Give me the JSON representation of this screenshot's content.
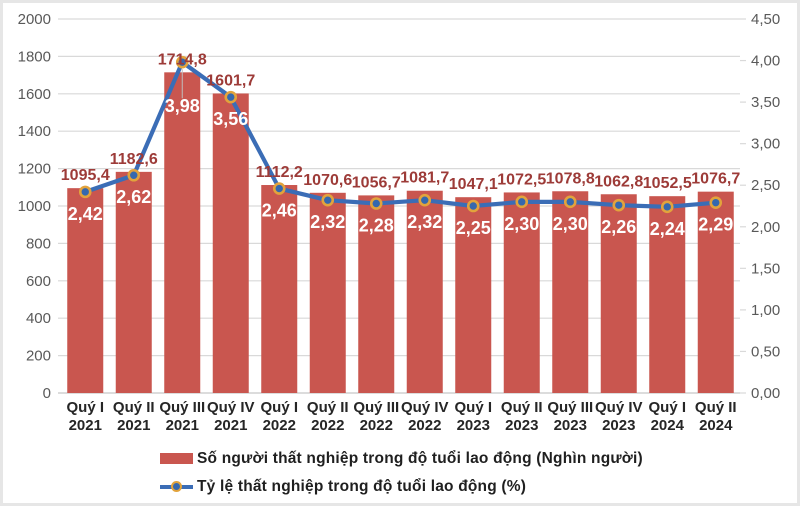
{
  "chart_data": {
    "type": "bar+line combo",
    "categories": [
      [
        "Quý I",
        "2021"
      ],
      [
        "Quý II",
        "2021"
      ],
      [
        "Quý III",
        "2021"
      ],
      [
        "Quý IV",
        "2021"
      ],
      [
        "Quý I",
        "2022"
      ],
      [
        "Quý II",
        "2022"
      ],
      [
        "Quý III",
        "2022"
      ],
      [
        "Quý IV",
        "2022"
      ],
      [
        "Quý I",
        "2023"
      ],
      [
        "Quý II",
        "2023"
      ],
      [
        "Quý III",
        "2023"
      ],
      [
        "Quý IV",
        "2023"
      ],
      [
        "Quý I",
        "2024"
      ],
      [
        "Quý II",
        "2024"
      ]
    ],
    "series": [
      {
        "name": "Số người thất nghiệp trong độ tuổi lao động (Nghìn người)",
        "type": "bar",
        "axis": "left",
        "values": [
          1095.4,
          1182.6,
          1714.8,
          1601.7,
          1112.2,
          1070.6,
          1056.7,
          1081.7,
          1047.1,
          1072.5,
          1078.8,
          1062.8,
          1052.5,
          1076.7
        ],
        "labels": [
          "1095,4",
          "1182,6",
          "1714,8",
          "1601,7",
          "1112,2",
          "1070,6",
          "1056,7",
          "1081,7",
          "1047,1",
          "1072,5",
          "1078,8",
          "1062,8",
          "1052,5",
          "1076,7"
        ],
        "color": "#c9564f",
        "label_color": "#9d3b38"
      },
      {
        "name": "Tỷ lệ thất nghiệp trong độ tuổi lao động (%)",
        "type": "line",
        "axis": "right",
        "values": [
          2.42,
          2.62,
          3.98,
          3.56,
          2.46,
          2.32,
          2.28,
          2.32,
          2.25,
          2.3,
          2.3,
          2.26,
          2.24,
          2.29
        ],
        "labels": [
          "2,42",
          "2,62",
          "3,98",
          "3,56",
          "2,46",
          "2,32",
          "2,28",
          "2,32",
          "2,25",
          "2,30",
          "2,30",
          "2,26",
          "2,24",
          "2,29"
        ],
        "color": "#3b6db6",
        "marker_fill": "#3568ae",
        "marker_ring": "#e2a33c",
        "label_color": "#ffffff"
      }
    ],
    "left_axis": {
      "min": 0,
      "max": 2000,
      "step": 200,
      "tick_labels": [
        "0",
        "200",
        "400",
        "600",
        "800",
        "1000",
        "1200",
        "1400",
        "1600",
        "1800",
        "2000"
      ]
    },
    "right_axis": {
      "min": 0,
      "max": 4.5,
      "step": 0.5,
      "tick_labels": [
        "0,00",
        "0,50",
        "1,00",
        "1,50",
        "2,00",
        "2,50",
        "3,00",
        "3,50",
        "4,00",
        "4,50"
      ]
    },
    "grid": true,
    "gridline_color": "#d9d9d9",
    "legend_position": "bottom-left"
  }
}
